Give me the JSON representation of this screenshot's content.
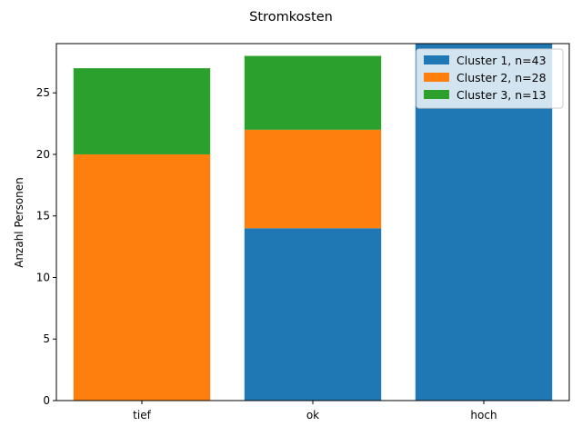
{
  "chart_data": {
    "type": "bar",
    "stacked": true,
    "title": "Stromkosten",
    "xlabel": "",
    "ylabel": "Anzahl Personen",
    "categories": [
      "tief",
      "ok",
      "hoch"
    ],
    "ylim": [
      0,
      29
    ],
    "yticks": [
      0,
      5,
      10,
      15,
      20,
      25
    ],
    "series": [
      {
        "name": "Cluster 1, n=43",
        "color": "#1f77b4",
        "values": [
          0,
          14,
          29
        ]
      },
      {
        "name": "Cluster 2, n=28",
        "color": "#ff7f0e",
        "values": [
          20,
          8,
          0
        ]
      },
      {
        "name": "Cluster 3, n=13",
        "color": "#2ca02c",
        "values": [
          7,
          6,
          0
        ]
      }
    ],
    "legend_position": "top-right",
    "grid": false
  }
}
